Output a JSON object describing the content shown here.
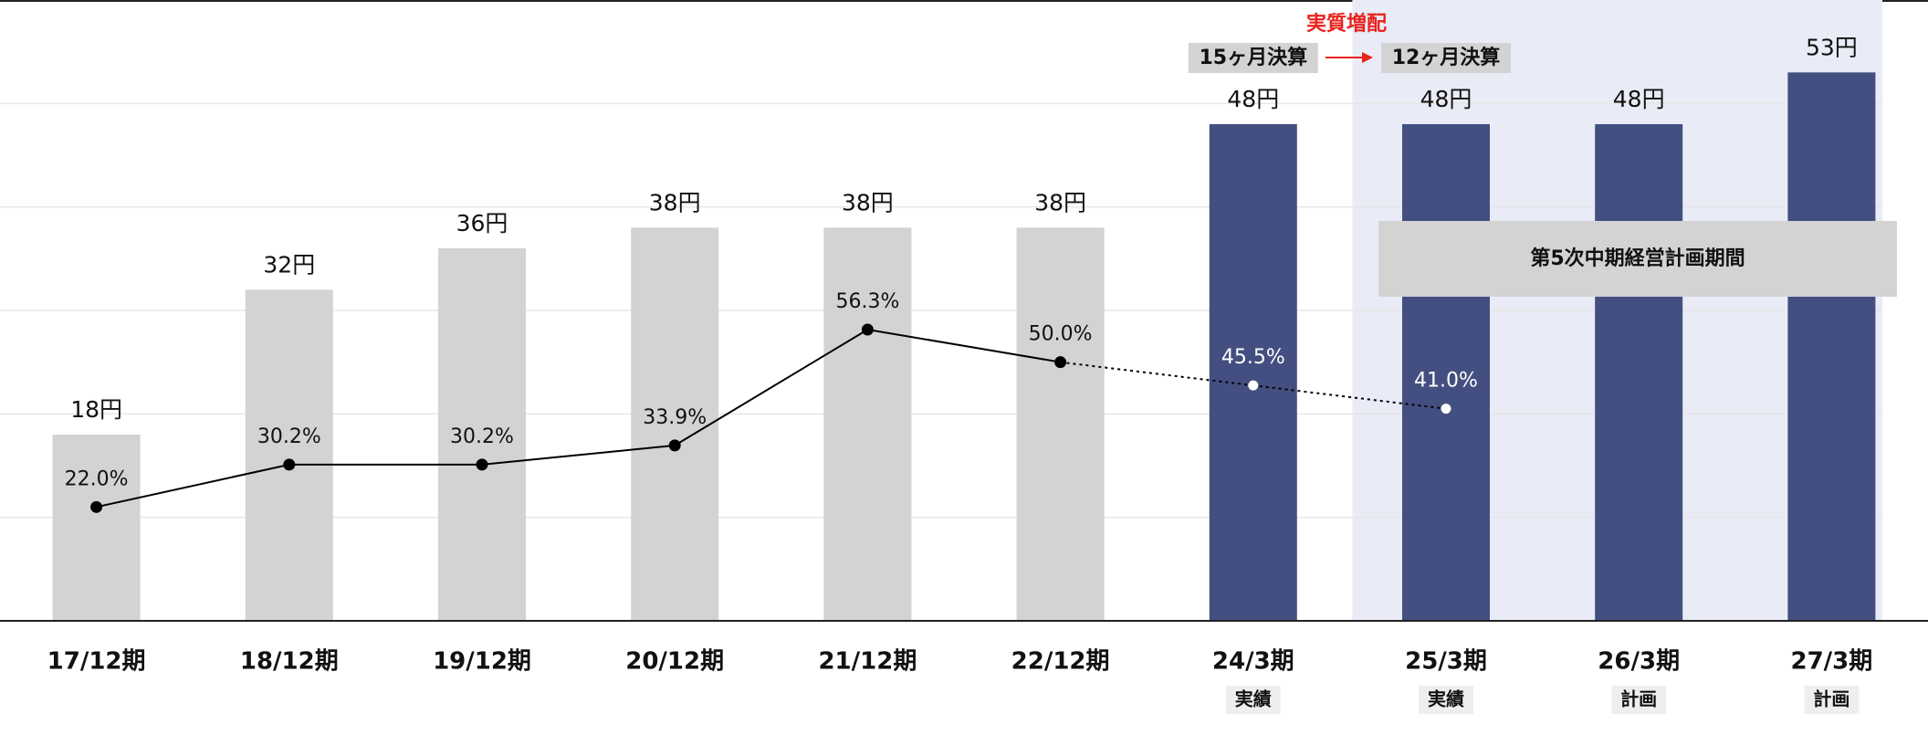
{
  "chart_data": {
    "type": "bar",
    "categories": [
      "17/12期",
      "18/12期",
      "19/12期",
      "20/12期",
      "21/12期",
      "22/12期",
      "24/3期",
      "25/3期",
      "26/3期",
      "27/3期"
    ],
    "category_notes": [
      null,
      null,
      null,
      null,
      null,
      null,
      "実績",
      "実績",
      "計画",
      "計画"
    ],
    "values": [
      18,
      32,
      36,
      38,
      38,
      38,
      48,
      48,
      48,
      53
    ],
    "value_labels": [
      "18円",
      "32円",
      "36円",
      "38円",
      "38円",
      "38円",
      "48円",
      "48円",
      "48円",
      "53円"
    ],
    "colors": [
      "#d3d3d3",
      "#d3d3d3",
      "#d3d3d3",
      "#d3d3d3",
      "#d3d3d3",
      "#d3d3d3",
      "#434f80",
      "#434f80",
      "#434f80",
      "#434f80"
    ],
    "ylim": [
      0,
      60
    ],
    "grid_lines": [
      10,
      20,
      30,
      40,
      50
    ],
    "line": {
      "axis": "y2",
      "values": [
        22.0,
        30.2,
        30.2,
        33.9,
        56.3,
        50.0,
        45.5,
        41.0,
        null,
        null
      ],
      "value_labels": [
        "22.0%",
        "30.2%",
        "30.2%",
        "33.9%",
        "56.3%",
        "50.0%",
        "45.5%",
        "41.0%",
        null,
        null
      ],
      "styles": [
        "solid",
        "solid",
        "solid",
        "solid",
        "solid",
        "solid",
        "dotted",
        "dotted",
        null,
        null
      ],
      "point_colors": [
        "#000000",
        "#000000",
        "#000000",
        "#000000",
        "#000000",
        "#000000",
        "#ffffff",
        "#ffffff",
        null,
        null
      ]
    },
    "y2lim": [
      0,
      120
    ],
    "highlight": {
      "categories": [
        "25/3期",
        "26/3期",
        "27/3期"
      ],
      "color": "#e9ebf6",
      "label": "第5次中期経営計画期間"
    },
    "annotations": {
      "increase": "実質増配",
      "before": "15ヶ月決算",
      "after": "12ヶ月決算"
    }
  }
}
